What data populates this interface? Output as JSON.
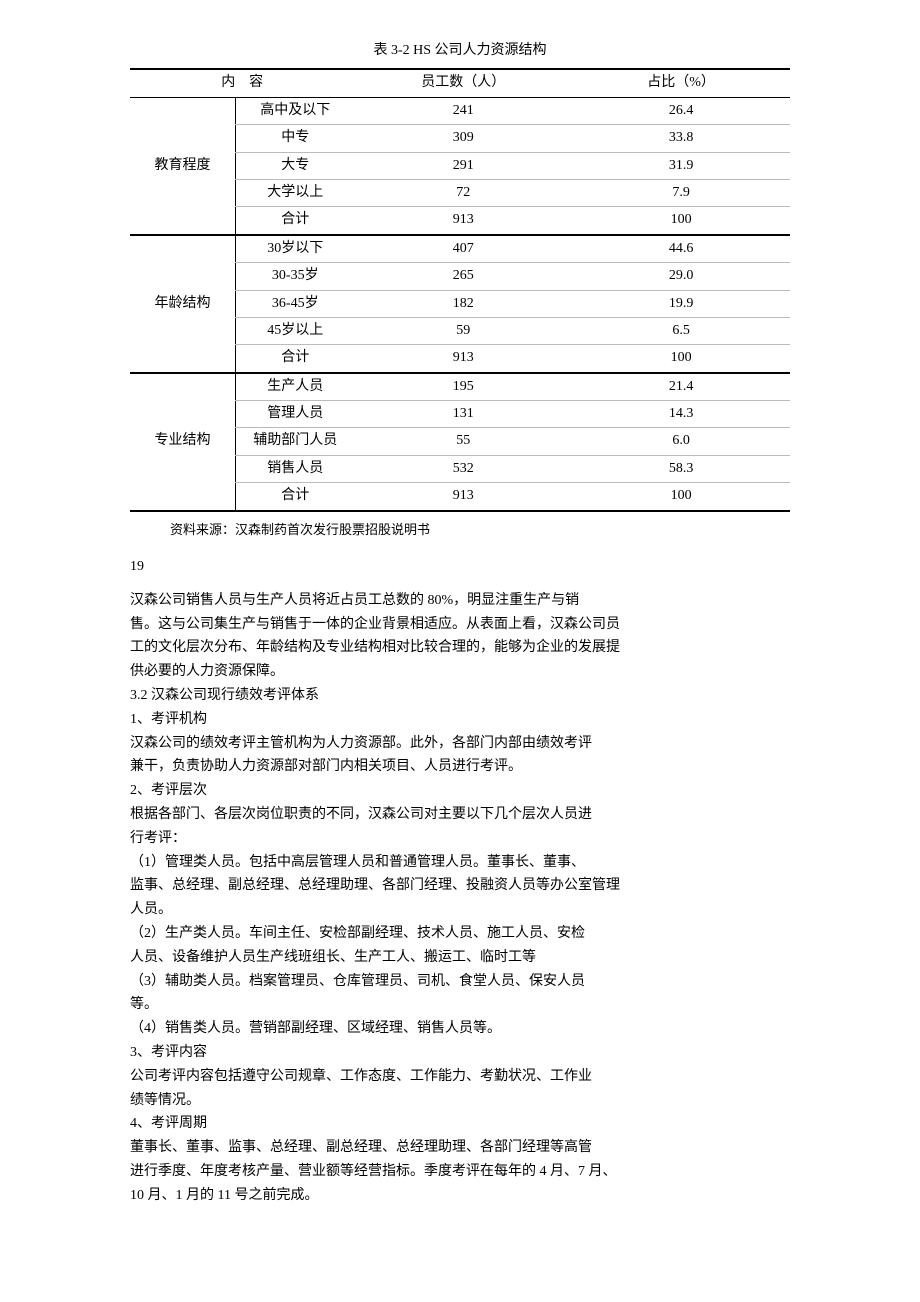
{
  "table": {
    "caption": "表 3-2 HS 公司人力资源结构",
    "headers": [
      "内　容",
      "员工数（人）",
      "占比（%）"
    ],
    "groups": [
      {
        "label": "教育程度",
        "rows": [
          {
            "cat": "高中及以下",
            "count": "241",
            "pct": "26.4"
          },
          {
            "cat": "中专",
            "count": "309",
            "pct": "33.8"
          },
          {
            "cat": "大专",
            "count": "291",
            "pct": "31.9"
          },
          {
            "cat": "大学以上",
            "count": "72",
            "pct": "7.9"
          },
          {
            "cat": "合计",
            "count": "913",
            "pct": "100"
          }
        ]
      },
      {
        "label": "年龄结构",
        "rows": [
          {
            "cat": "30岁以下",
            "count": "407",
            "pct": "44.6"
          },
          {
            "cat": "30-35岁",
            "count": "265",
            "pct": "29.0"
          },
          {
            "cat": "36-45岁",
            "count": "182",
            "pct": "19.9"
          },
          {
            "cat": "45岁以上",
            "count": "59",
            "pct": "6.5"
          },
          {
            "cat": "合计",
            "count": "913",
            "pct": "100"
          }
        ]
      },
      {
        "label": "专业结构",
        "rows": [
          {
            "cat": "生产人员",
            "count": "195",
            "pct": "21.4"
          },
          {
            "cat": "管理人员",
            "count": "131",
            "pct": "14.3"
          },
          {
            "cat": "辅助部门人员",
            "count": "55",
            "pct": "6.0"
          },
          {
            "cat": "销售人员",
            "count": "532",
            "pct": "58.3"
          },
          {
            "cat": "合计",
            "count": "913",
            "pct": "100"
          }
        ]
      }
    ],
    "source": "资料来源：汉森制药首次发行股票招股说明书"
  },
  "pageNum": "19",
  "paragraphs": [
    "汉森公司销售人员与生产人员将近占员工总数的 80%，明显注重生产与销",
    "售。这与公司集生产与销售于一体的企业背景相适应。从表面上看，汉森公司员",
    "工的文化层次分布、年龄结构及专业结构相对比较合理的，能够为企业的发展提",
    "供必要的人力资源保障。",
    "3.2 汉森公司现行绩效考评体系",
    "1、考评机构",
    "汉森公司的绩效考评主管机构为人力资源部。此外，各部门内部由绩效考评",
    "兼干，负责协助人力资源部对部门内相关项目、人员进行考评。",
    "2、考评层次",
    "根据各部门、各层次岗位职责的不同，汉森公司对主要以下几个层次人员进",
    "行考评：",
    "（1）管理类人员。包括中高层管理人员和普通管理人员。董事长、董事、",
    "监事、总经理、副总经理、总经理助理、各部门经理、投融资人员等办公室管理",
    "人员。",
    "（2）生产类人员。车间主任、安检部副经理、技术人员、施工人员、安检",
    "人员、设备维护人员生产线班组长、生产工人、搬运工、临时工等",
    "（3）辅助类人员。档案管理员、仓库管理员、司机、食堂人员、保安人员",
    "等。",
    "（4）销售类人员。营销部副经理、区域经理、销售人员等。",
    "3、考评内容",
    "公司考评内容包括遵守公司规章、工作态度、工作能力、考勤状况、工作业",
    "绩等情况。",
    "4、考评周期",
    "董事长、董事、监事、总经理、副总经理、总经理助理、各部门经理等高管",
    "进行季度、年度考核产量、营业额等经营指标。季度考评在每年的 4 月、7 月、",
    "10 月、1 月的 11 号之前完成。"
  ]
}
